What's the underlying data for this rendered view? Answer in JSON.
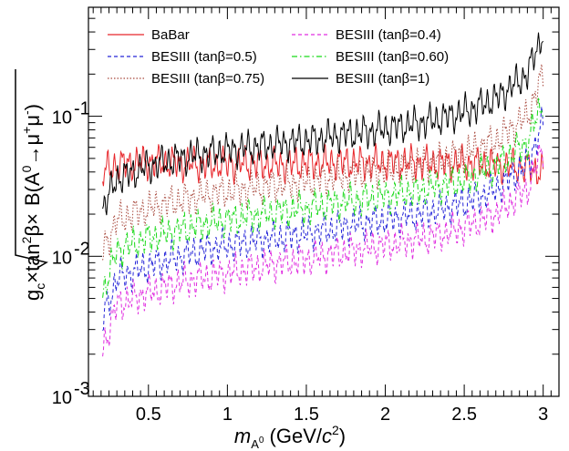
{
  "chart_data": {
    "type": "line",
    "title": "",
    "xlabel": {
      "main": "m",
      "sub_letter": "A",
      "sub_sup": "0",
      "units_pre": " (GeV/",
      "units_c": "c",
      "units_sup": "2",
      "units_post": ")"
    },
    "ylabel": {
      "g": "g",
      "g_sub": "c",
      "times_tan": "×tan",
      "tan_sup": "2",
      "beta_times": "β×",
      "B_open": "B(A",
      "A_sup": "0",
      "arrow": "→μ",
      "mu_plus": "+",
      "mu": "μ",
      "mu_minus": "-",
      "close": ")"
    },
    "xlim": [
      0.12,
      3.1
    ],
    "ylim": [
      0.001,
      0.6
    ],
    "yscale": "log",
    "x_ticks": [
      0.5,
      1,
      1.5,
      2,
      2.5,
      3
    ],
    "x_tick_labels": [
      "0.5",
      "1",
      "1.5",
      "2",
      "2.5",
      "3"
    ],
    "y_ticks": [
      0.001,
      0.01,
      0.1
    ],
    "y_tick_labels": [
      {
        "base": "10",
        "exp": "-3"
      },
      {
        "base": "10",
        "exp": "-2"
      },
      {
        "base": "10",
        "exp": "-1"
      }
    ],
    "grid": false,
    "legend_position": "top-left, two columns",
    "series": [
      {
        "name": "BaBar",
        "color": "#e8262b",
        "dash": "solid",
        "x": [
          0.21,
          0.3,
          0.5,
          0.7,
          0.9,
          1.1,
          1.3,
          1.5,
          1.7,
          1.9,
          2.1,
          2.3,
          2.5,
          2.7,
          2.9,
          3.0
        ],
        "y": [
          0.04,
          0.045,
          0.047,
          0.046,
          0.045,
          0.046,
          0.045,
          0.046,
          0.047,
          0.046,
          0.047,
          0.046,
          0.046,
          0.045,
          0.043,
          0.04
        ]
      },
      {
        "name": "BESIII (tanβ=0.5)",
        "color": "#2424d8",
        "dash": "dashed",
        "x": [
          0.21,
          0.3,
          0.5,
          0.7,
          0.9,
          1.1,
          1.3,
          1.5,
          1.7,
          1.9,
          2.1,
          2.3,
          2.5,
          2.7,
          2.9,
          3.0
        ],
        "y": [
          0.0035,
          0.007,
          0.0085,
          0.01,
          0.0115,
          0.0125,
          0.0135,
          0.0145,
          0.016,
          0.0175,
          0.019,
          0.021,
          0.024,
          0.03,
          0.045,
          0.09
        ]
      },
      {
        "name": "BESIII (tanβ=0.75)",
        "color": "#a8493d",
        "dash": "dotted",
        "x": [
          0.21,
          0.3,
          0.5,
          0.7,
          0.9,
          1.1,
          1.3,
          1.5,
          1.7,
          1.9,
          2.1,
          2.3,
          2.5,
          2.7,
          2.9,
          3.0
        ],
        "y": [
          0.011,
          0.018,
          0.022,
          0.025,
          0.028,
          0.03,
          0.032,
          0.034,
          0.037,
          0.04,
          0.043,
          0.047,
          0.054,
          0.067,
          0.1,
          0.2
        ]
      },
      {
        "name": "BESIII (tanβ=0.4)",
        "color": "#e02ee0",
        "dash": "dashed",
        "x": [
          0.21,
          0.3,
          0.5,
          0.7,
          0.9,
          1.1,
          1.3,
          1.5,
          1.7,
          1.9,
          2.1,
          2.3,
          2.5,
          2.7,
          2.9,
          3.0
        ],
        "y": [
          0.0022,
          0.0045,
          0.0055,
          0.0065,
          0.0072,
          0.008,
          0.0088,
          0.0095,
          0.0105,
          0.0115,
          0.0125,
          0.0138,
          0.016,
          0.02,
          0.03,
          0.06
        ]
      },
      {
        "name": "BESIII (tanβ=0.60)",
        "color": "#17d917",
        "dash": "dashdot",
        "x": [
          0.21,
          0.3,
          0.5,
          0.7,
          0.9,
          1.1,
          1.3,
          1.5,
          1.7,
          1.9,
          2.1,
          2.3,
          2.5,
          2.7,
          2.9,
          3.0
        ],
        "y": [
          0.0055,
          0.011,
          0.0135,
          0.0155,
          0.0175,
          0.019,
          0.0205,
          0.022,
          0.024,
          0.026,
          0.028,
          0.031,
          0.035,
          0.044,
          0.065,
          0.13
        ]
      },
      {
        "name": "BESIII (tanβ=1)",
        "color": "#000000",
        "dash": "solid",
        "x": [
          0.21,
          0.3,
          0.5,
          0.7,
          0.9,
          1.1,
          1.3,
          1.5,
          1.7,
          1.9,
          2.1,
          2.3,
          2.5,
          2.7,
          2.9,
          3.0
        ],
        "y": [
          0.022,
          0.036,
          0.044,
          0.05,
          0.055,
          0.059,
          0.063,
          0.067,
          0.073,
          0.078,
          0.085,
          0.093,
          0.107,
          0.133,
          0.2,
          0.4
        ]
      }
    ]
  }
}
